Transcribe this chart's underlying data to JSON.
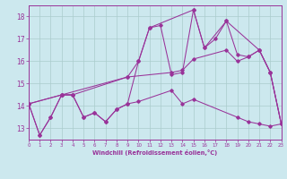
{
  "xlabel": "Windchill (Refroidissement éolien,°C)",
  "bg_color": "#cce8ee",
  "line_color": "#993399",
  "grid_color": "#aacccc",
  "xlim": [
    0,
    23
  ],
  "ylim": [
    12.5,
    18.5
  ],
  "xticks": [
    0,
    1,
    2,
    3,
    4,
    5,
    6,
    7,
    8,
    9,
    10,
    11,
    12,
    13,
    14,
    15,
    16,
    17,
    18,
    19,
    20,
    21,
    22,
    23
  ],
  "yticks": [
    13,
    14,
    15,
    16,
    17,
    18
  ],
  "line1_x": [
    0,
    1,
    2,
    3,
    4,
    5,
    6,
    7,
    8,
    9,
    10,
    11,
    12,
    13,
    14,
    15,
    16,
    17,
    18,
    19,
    20,
    21,
    22,
    23
  ],
  "line1_y": [
    14.1,
    12.7,
    13.5,
    14.5,
    14.5,
    13.5,
    13.7,
    13.3,
    13.85,
    14.1,
    16.0,
    17.5,
    17.6,
    15.4,
    15.5,
    18.3,
    16.6,
    17.0,
    17.8,
    16.3,
    16.2,
    16.5,
    15.5,
    13.2
  ],
  "line2_x": [
    0,
    3,
    4,
    9,
    10,
    11,
    15,
    16,
    18,
    21,
    22,
    23
  ],
  "line2_y": [
    14.1,
    14.5,
    14.5,
    15.3,
    16.0,
    17.5,
    18.3,
    16.6,
    17.8,
    16.5,
    15.5,
    13.2
  ],
  "line3_x": [
    0,
    1,
    2,
    3,
    4,
    5,
    6,
    7,
    8,
    9,
    10,
    13,
    14,
    15,
    19,
    20,
    21,
    22,
    23
  ],
  "line3_y": [
    14.1,
    12.7,
    13.5,
    14.5,
    14.5,
    13.5,
    13.7,
    13.3,
    13.85,
    14.1,
    14.2,
    14.7,
    14.1,
    14.3,
    13.5,
    13.3,
    13.2,
    13.1,
    13.2
  ],
  "line4_x": [
    0,
    3,
    9,
    13,
    14,
    15,
    18,
    19,
    20,
    21,
    22,
    23
  ],
  "line4_y": [
    14.1,
    14.5,
    15.3,
    15.5,
    15.6,
    16.1,
    16.5,
    16.0,
    16.2,
    16.5,
    15.5,
    13.2
  ]
}
